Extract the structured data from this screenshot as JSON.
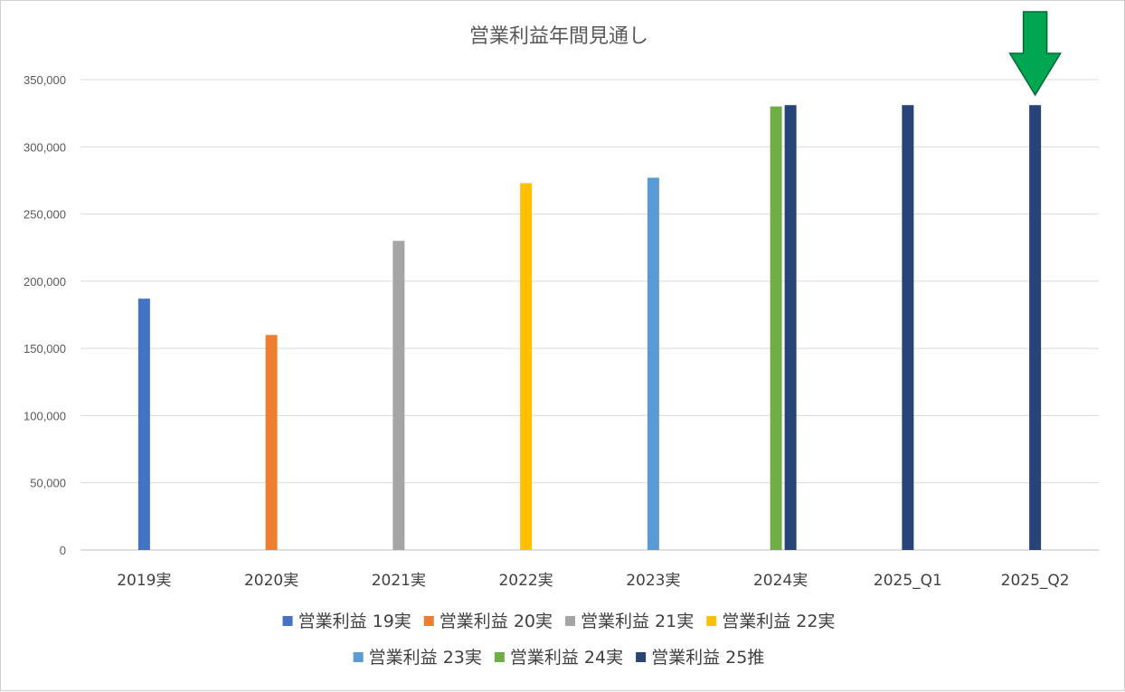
{
  "chart_data": {
    "type": "bar",
    "title": "営業利益年間見通し",
    "xlabel": "",
    "ylabel": "",
    "categories": [
      "2019実",
      "2020実",
      "2021実",
      "2022実",
      "2023実",
      "2024実",
      "2025_Q1",
      "2025_Q2"
    ],
    "ylim": [
      0,
      350000
    ],
    "yticks": [
      {
        "value": 0,
        "label": "0"
      },
      {
        "value": 50000,
        "label": "50,000"
      },
      {
        "value": 100000,
        "label": "100,000"
      },
      {
        "value": 150000,
        "label": "150,000"
      },
      {
        "value": 200000,
        "label": "200,000"
      },
      {
        "value": 250000,
        "label": "250,000"
      },
      {
        "value": 300000,
        "label": "300,000"
      },
      {
        "value": 350000,
        "label": "350,000"
      }
    ],
    "grid": true,
    "legend_position": "bottom",
    "series": [
      {
        "name": "営業利益 19実",
        "color": "#4472C4",
        "values": [
          187000,
          null,
          null,
          null,
          null,
          null,
          null,
          null
        ]
      },
      {
        "name": "営業利益 20実",
        "color": "#ED7D31",
        "values": [
          null,
          160000,
          null,
          null,
          null,
          null,
          null,
          null
        ]
      },
      {
        "name": "営業利益 21実",
        "color": "#A5A5A5",
        "values": [
          null,
          null,
          230000,
          null,
          null,
          null,
          null,
          null
        ]
      },
      {
        "name": "営業利益 22実",
        "color": "#FFC000",
        "values": [
          null,
          null,
          null,
          273000,
          null,
          null,
          null,
          null
        ]
      },
      {
        "name": "営業利益 23実",
        "color": "#5B9BD5",
        "values": [
          null,
          null,
          null,
          null,
          277000,
          null,
          null,
          null
        ]
      },
      {
        "name": "営業利益 24実",
        "color": "#70AD47",
        "values": [
          null,
          null,
          null,
          null,
          null,
          330000,
          null,
          null
        ]
      },
      {
        "name": "営業利益 25推",
        "color": "#264478",
        "values": [
          null,
          null,
          null,
          null,
          null,
          331000,
          331000,
          331000
        ]
      }
    ],
    "annotation": {
      "type": "down-arrow",
      "color": "#00A651",
      "target_category": "2025_Q2"
    }
  }
}
